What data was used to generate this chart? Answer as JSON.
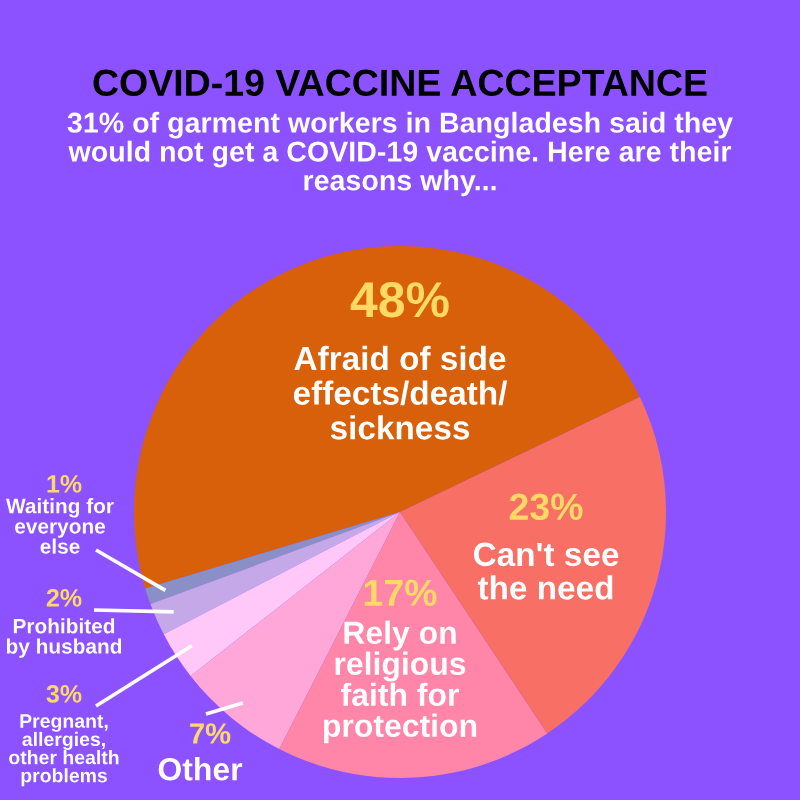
{
  "chart_data": {
    "type": "pie",
    "title": "COVID-19 VACCINE ACCEPTANCE",
    "subtitle": "31% of garment workers in Bangladesh said they\nwould not get a COVID-19 vaccine. Here are their\nreasons why...",
    "categories": [
      "Afraid of side\neffects/death/\nsickness",
      "Waiting for\neveryone\nelse",
      "Prohibited\nby husband",
      "Pregnant,\nallergies,\nother health\nproblems",
      "Other",
      "Rely on\nreligious\nfaith for\nprotection",
      "Can't see\nthe need"
    ],
    "values": [
      48,
      1,
      2,
      3,
      7,
      17,
      23
    ],
    "value_labels": [
      "48%",
      "1%",
      "2%",
      "3%",
      "7%",
      "17%",
      "23%"
    ],
    "colors": [
      "#d9600a",
      "#8a8fc8",
      "#c4a8e8",
      "#ffc8f8",
      "#ffa7d8",
      "#ff86a8",
      "#f86f66"
    ]
  }
}
